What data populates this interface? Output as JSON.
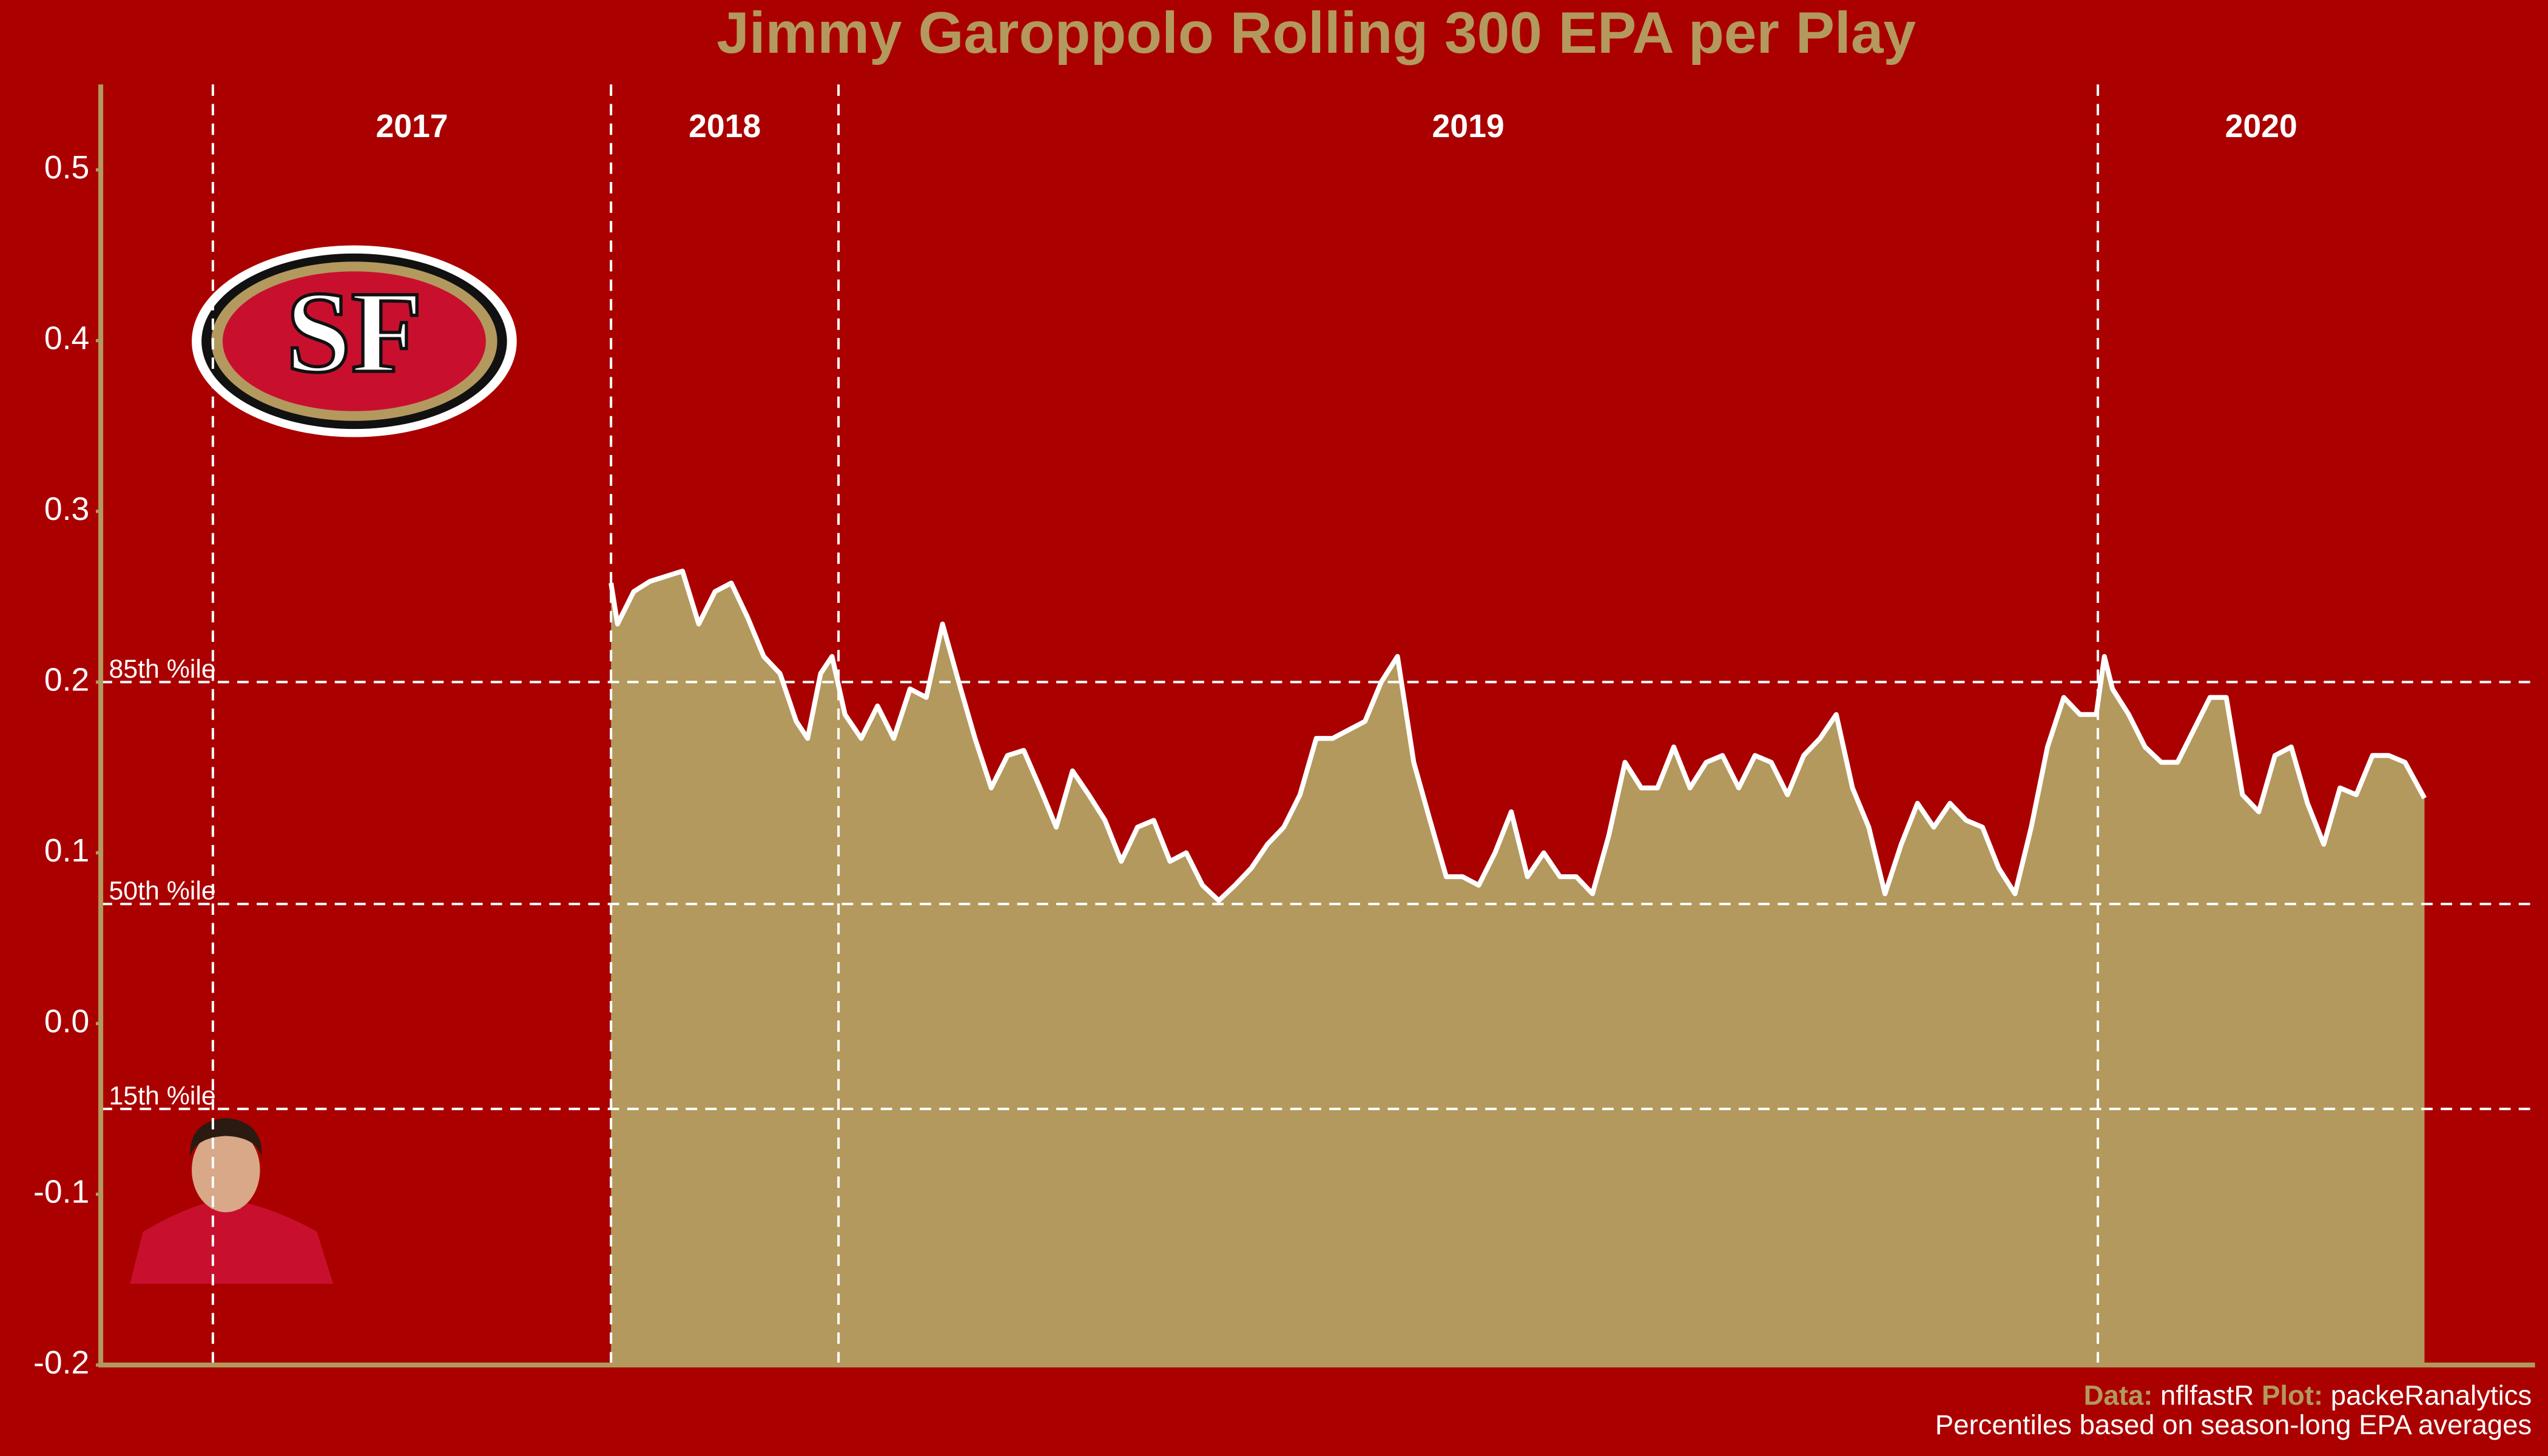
{
  "chart_data": {
    "type": "area",
    "title": "Jimmy Garoppolo Rolling 300 EPA per Play",
    "logo_text": "SF",
    "color": "#b3995d",
    "line_color": "#ffffff",
    "background": "#aa0000",
    "xlim": [
      0,
      1498
    ],
    "ylim": [
      -0.2,
      0.55
    ],
    "yticks": [
      -0.2,
      -0.1,
      {
        "value": 0,
        "label": "0.0"
      },
      0.1,
      0.2,
      0.3,
      0.4,
      0.5
    ],
    "seasons": [
      {
        "name": "2017",
        "start": 69
      },
      {
        "name": "2018",
        "start": 314
      },
      {
        "name": "2019",
        "start": 454
      },
      {
        "name": "2020",
        "start": 1229
      }
    ],
    "reference_lines": [
      {
        "label": "85th %ile",
        "value": 0.2
      },
      {
        "label": "50th %ile",
        "value": 0.07
      },
      {
        "label": "15th %ile",
        "value": -0.05
      }
    ],
    "x": [
      314,
      318,
      328,
      338,
      348,
      358,
      368,
      378,
      388,
      398,
      408,
      418,
      428,
      435,
      443,
      450,
      458,
      468,
      478,
      488,
      498,
      508,
      518,
      528,
      538,
      548,
      558,
      568,
      578,
      588,
      598,
      608,
      618,
      628,
      638,
      648,
      658,
      668,
      678,
      688,
      698,
      708,
      718,
      728,
      738,
      748,
      758,
      768,
      778,
      788,
      798,
      808,
      818,
      828,
      838,
      848,
      858,
      868,
      878,
      888,
      898,
      908,
      918,
      928,
      938,
      948,
      958,
      968,
      978,
      988,
      998,
      1008,
      1018,
      1028,
      1038,
      1048,
      1058,
      1068,
      1078,
      1088,
      1098,
      1108,
      1118,
      1128,
      1138,
      1148,
      1158,
      1168,
      1178,
      1188,
      1198,
      1208,
      1218,
      1228,
      1233,
      1238,
      1248,
      1258,
      1268,
      1278,
      1288,
      1298,
      1308,
      1318,
      1328,
      1338,
      1348,
      1358,
      1368,
      1378,
      1388,
      1398,
      1408,
      1418,
      1430
    ],
    "values": [
      0.258,
      0.234,
      0.253,
      0.259,
      0.262,
      0.265,
      0.234,
      0.253,
      0.258,
      0.238,
      0.215,
      0.205,
      0.177,
      0.167,
      0.205,
      0.215,
      0.181,
      0.167,
      0.186,
      0.167,
      0.196,
      0.191,
      0.234,
      0.2,
      0.167,
      0.138,
      0.157,
      0.16,
      0.138,
      0.115,
      0.148,
      0.134,
      0.119,
      0.095,
      0.115,
      0.119,
      0.095,
      0.1,
      0.081,
      0.072,
      0.081,
      0.091,
      0.105,
      0.115,
      0.134,
      0.167,
      0.167,
      0.172,
      0.177,
      0.2,
      0.215,
      0.153,
      0.119,
      0.086,
      0.086,
      0.081,
      0.1,
      0.124,
      0.086,
      0.1,
      0.086,
      0.086,
      0.076,
      0.11,
      0.153,
      0.138,
      0.138,
      0.162,
      0.138,
      0.153,
      0.157,
      0.138,
      0.157,
      0.153,
      0.134,
      0.157,
      0.167,
      0.181,
      0.138,
      0.115,
      0.076,
      0.105,
      0.129,
      0.115,
      0.129,
      0.119,
      0.115,
      0.091,
      0.076,
      0.115,
      0.162,
      0.191,
      0.181,
      0.181,
      0.215,
      0.196,
      0.181,
      0.162,
      0.153,
      0.153,
      0.172,
      0.191,
      0.191,
      0.134,
      0.124,
      0.157,
      0.162,
      0.129,
      0.105,
      0.138,
      0.134,
      0.157,
      0.157,
      0.153,
      0.132
    ],
    "caption": {
      "data_label": "Data:",
      "data_source": "nflfastR",
      "plot_label": "Plot:",
      "plot_author": "packeRanalytics",
      "note": "Percentiles based on season-long EPA averages"
    }
  }
}
